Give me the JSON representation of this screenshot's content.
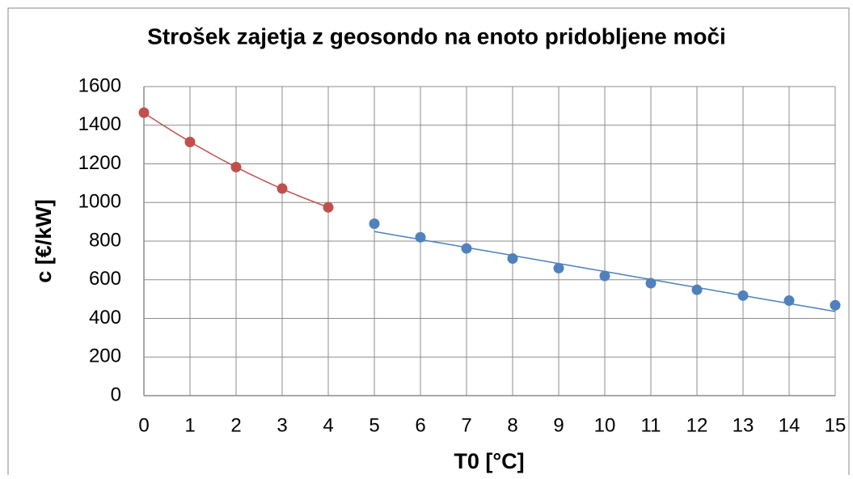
{
  "chart_data": {
    "type": "scatter",
    "title": "Strošek zajetja z geosondo na enoto pridobljene moči",
    "x_label": "T0 [°C]",
    "y_label": "c [€/kW]",
    "xlim": [
      0,
      15
    ],
    "xticks": [
      0,
      1,
      2,
      3,
      4,
      5,
      6,
      7,
      8,
      9,
      10,
      11,
      12,
      13,
      14,
      15
    ],
    "ylim": [
      0,
      1600
    ],
    "yticks": [
      0,
      200,
      400,
      600,
      800,
      1000,
      1200,
      1400,
      1600
    ],
    "grid": true,
    "series": [
      {
        "color": "#c0504d",
        "trendline": "polynomial",
        "x": [
          0,
          1,
          2,
          3,
          4
        ],
        "values": [
          1465,
          1313,
          1183,
          1072,
          975
        ]
      },
      {
        "color": "#4f81bd",
        "trendline": "linear",
        "x": [
          5,
          6,
          7,
          8,
          9,
          10,
          11,
          12,
          13,
          14,
          15
        ],
        "values": [
          890,
          820,
          762,
          710,
          660,
          620,
          582,
          548,
          518,
          492,
          468
        ]
      }
    ]
  }
}
